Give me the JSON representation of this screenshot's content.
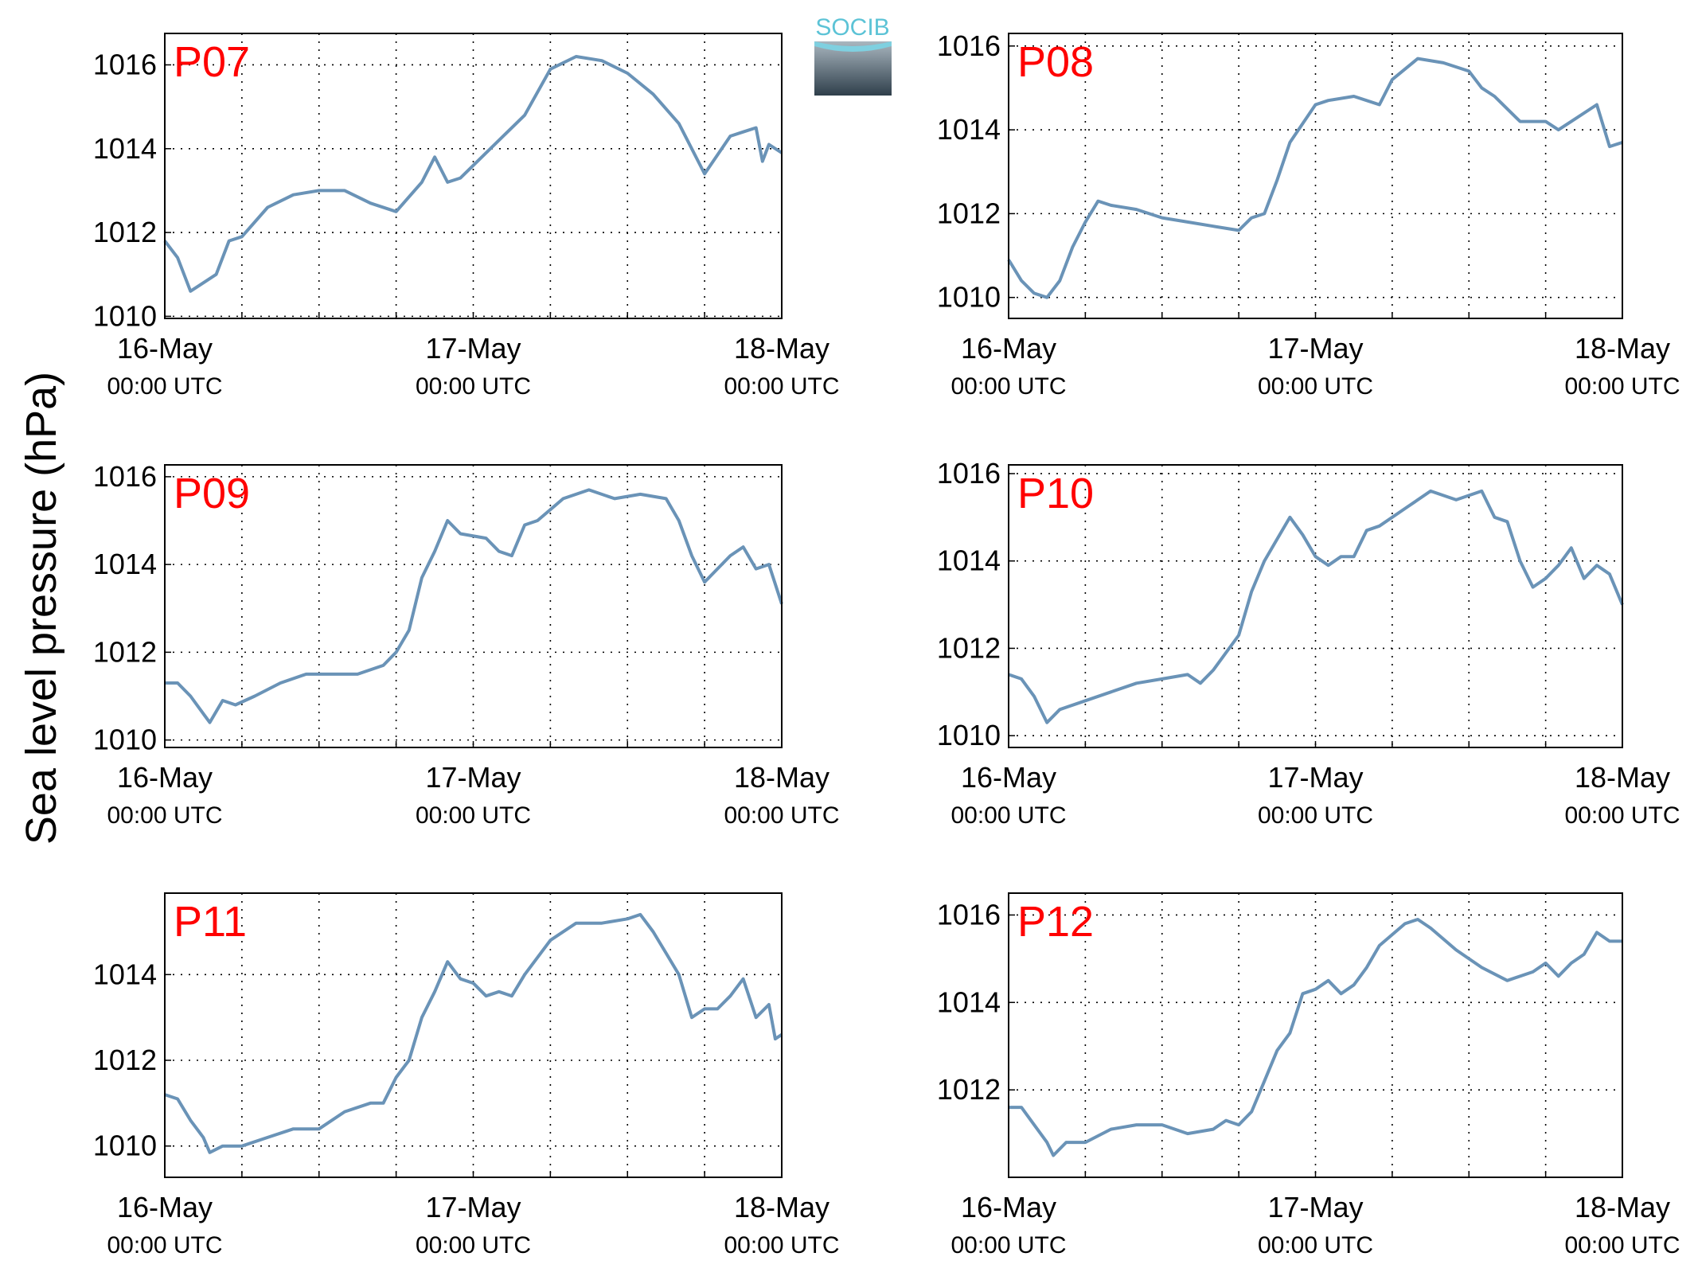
{
  "ylabel": "Sea level pressure (hPa)",
  "logo": "SOCIB",
  "chart_data": [
    {
      "type": "line",
      "title": "P07",
      "color": "#6a93b7",
      "grid": true,
      "xlim": [
        0,
        48
      ],
      "ylim": [
        1009.95,
        1016.75
      ],
      "yticks": [
        1010,
        1012,
        1014,
        1016
      ],
      "xticks": [
        {
          "value": 0,
          "label": "16-May\n00:00 UTC"
        },
        {
          "value": 6,
          "label": null
        },
        {
          "value": 12,
          "label": null
        },
        {
          "value": 18,
          "label": null
        },
        {
          "value": 24,
          "label": "17-May\n00:00 UTC"
        },
        {
          "value": 30,
          "label": null
        },
        {
          "value": 36,
          "label": null
        },
        {
          "value": 42,
          "label": null
        },
        {
          "value": 48,
          "label": "18-May\n00:00 UTC"
        }
      ],
      "x": [
        0,
        1,
        2,
        3,
        4,
        5,
        6,
        8,
        10,
        12,
        14,
        16,
        18,
        20,
        21,
        22,
        23,
        24,
        26,
        28,
        30,
        32,
        34,
        36,
        38,
        40,
        42,
        44,
        45,
        46,
        46.5,
        47,
        48
      ],
      "values": [
        1011.8,
        1011.4,
        1010.6,
        1010.8,
        1011.0,
        1011.8,
        1011.9,
        1012.6,
        1012.9,
        1013.0,
        1013.0,
        1012.7,
        1012.5,
        1013.2,
        1013.8,
        1013.2,
        1013.3,
        1013.6,
        1014.2,
        1014.8,
        1015.9,
        1016.2,
        1016.1,
        1015.8,
        1015.3,
        1014.6,
        1013.4,
        1014.3,
        1014.4,
        1014.5,
        1013.7,
        1014.1,
        1013.9
      ]
    },
    {
      "type": "line",
      "title": "P08",
      "color": "#6a93b7",
      "grid": true,
      "xlim": [
        0,
        48
      ],
      "ylim": [
        1009.5,
        1016.3
      ],
      "yticks": [
        1010,
        1012,
        1014,
        1016
      ],
      "xticks": [
        {
          "value": 0,
          "label": "16-May\n00:00 UTC"
        },
        {
          "value": 6,
          "label": null
        },
        {
          "value": 12,
          "label": null
        },
        {
          "value": 18,
          "label": null
        },
        {
          "value": 24,
          "label": "17-May\n00:00 UTC"
        },
        {
          "value": 30,
          "label": null
        },
        {
          "value": 36,
          "label": null
        },
        {
          "value": 42,
          "label": null
        },
        {
          "value": 48,
          "label": "18-May\n00:00 UTC"
        }
      ],
      "x": [
        0,
        1,
        2,
        3,
        4,
        5,
        6,
        7,
        8,
        10,
        12,
        14,
        16,
        18,
        19,
        20,
        21,
        22,
        24,
        25,
        27,
        29,
        30,
        32,
        34,
        36,
        37,
        38,
        40,
        42,
        43,
        44,
        46,
        47,
        48
      ],
      "values": [
        1010.9,
        1010.4,
        1010.1,
        1010.0,
        1010.4,
        1011.2,
        1011.8,
        1012.3,
        1012.2,
        1012.1,
        1011.9,
        1011.8,
        1011.7,
        1011.6,
        1011.9,
        1012.0,
        1012.8,
        1013.7,
        1014.6,
        1014.7,
        1014.8,
        1014.6,
        1015.2,
        1015.7,
        1015.6,
        1015.4,
        1015.0,
        1014.8,
        1014.2,
        1014.2,
        1014.0,
        1014.2,
        1014.6,
        1013.6,
        1013.7
      ]
    },
    {
      "type": "line",
      "title": "P09",
      "color": "#6a93b7",
      "grid": true,
      "xlim": [
        0,
        48
      ],
      "ylim": [
        1009.83,
        1016.27
      ],
      "yticks": [
        1010,
        1012,
        1014,
        1016
      ],
      "xticks": [
        {
          "value": 0,
          "label": "16-May\n00:00 UTC"
        },
        {
          "value": 6,
          "label": null
        },
        {
          "value": 12,
          "label": null
        },
        {
          "value": 18,
          "label": null
        },
        {
          "value": 24,
          "label": "17-May\n00:00 UTC"
        },
        {
          "value": 30,
          "label": null
        },
        {
          "value": 36,
          "label": null
        },
        {
          "value": 42,
          "label": null
        },
        {
          "value": 48,
          "label": "18-May\n00:00 UTC"
        }
      ],
      "x": [
        0,
        1,
        2,
        3,
        3.5,
        4.5,
        5.5,
        7,
        9,
        11,
        13,
        15,
        17,
        18,
        19,
        20,
        21,
        22,
        23,
        25,
        26,
        27,
        28,
        29,
        31,
        33,
        35,
        37,
        39,
        40,
        41,
        42,
        43,
        44,
        45,
        46,
        47,
        48
      ],
      "values": [
        1011.3,
        1011.3,
        1011.0,
        1010.6,
        1010.4,
        1010.9,
        1010.8,
        1011.0,
        1011.3,
        1011.5,
        1011.5,
        1011.5,
        1011.7,
        1012.0,
        1012.5,
        1013.7,
        1014.3,
        1015.0,
        1014.7,
        1014.6,
        1014.3,
        1014.2,
        1014.9,
        1015.0,
        1015.5,
        1015.7,
        1015.5,
        1015.6,
        1015.5,
        1015.0,
        1014.2,
        1013.6,
        1013.9,
        1014.2,
        1014.4,
        1013.9,
        1014.0,
        1013.1
      ]
    },
    {
      "type": "line",
      "title": "P10",
      "color": "#6a93b7",
      "grid": true,
      "xlim": [
        0,
        48
      ],
      "ylim": [
        1009.73,
        1016.2
      ],
      "yticks": [
        1010,
        1012,
        1014,
        1016
      ],
      "xticks": [
        {
          "value": 0,
          "label": "16-May\n00:00 UTC"
        },
        {
          "value": 6,
          "label": null
        },
        {
          "value": 12,
          "label": null
        },
        {
          "value": 18,
          "label": null
        },
        {
          "value": 24,
          "label": "17-May\n00:00 UTC"
        },
        {
          "value": 30,
          "label": null
        },
        {
          "value": 36,
          "label": null
        },
        {
          "value": 42,
          "label": null
        },
        {
          "value": 48,
          "label": "18-May\n00:00 UTC"
        }
      ],
      "x": [
        0,
        1,
        2,
        3,
        4,
        6,
        8,
        10,
        12,
        14,
        15,
        16,
        18,
        19,
        20,
        21,
        22,
        23,
        24,
        25,
        26,
        27,
        28,
        29,
        31,
        33,
        35,
        37,
        38,
        39,
        40,
        41,
        42,
        43,
        44,
        45,
        46,
        47,
        48
      ],
      "values": [
        1011.4,
        1011.3,
        1010.9,
        1010.3,
        1010.6,
        1010.8,
        1011.0,
        1011.2,
        1011.3,
        1011.4,
        1011.2,
        1011.5,
        1012.3,
        1013.3,
        1014.0,
        1014.5,
        1015.0,
        1014.6,
        1014.1,
        1013.9,
        1014.1,
        1014.1,
        1014.7,
        1014.8,
        1015.2,
        1015.6,
        1015.4,
        1015.6,
        1015.0,
        1014.9,
        1014.0,
        1013.4,
        1013.6,
        1013.9,
        1014.3,
        1013.6,
        1013.9,
        1013.7,
        1013.0
      ]
    },
    {
      "type": "line",
      "title": "P11",
      "color": "#6a93b7",
      "grid": true,
      "xlim": [
        0,
        48
      ],
      "ylim": [
        1009.27,
        1015.9
      ],
      "yticks": [
        1010,
        1012,
        1014
      ],
      "xticks": [
        {
          "value": 0,
          "label": "16-May\n00:00 UTC"
        },
        {
          "value": 6,
          "label": null
        },
        {
          "value": 12,
          "label": null
        },
        {
          "value": 18,
          "label": null
        },
        {
          "value": 24,
          "label": "17-May\n00:00 UTC"
        },
        {
          "value": 30,
          "label": null
        },
        {
          "value": 36,
          "label": null
        },
        {
          "value": 42,
          "label": null
        },
        {
          "value": 48,
          "label": "18-May\n00:00 UTC"
        }
      ],
      "x": [
        0,
        1,
        2,
        3,
        3.5,
        4.5,
        6,
        8,
        10,
        12,
        14,
        16,
        17,
        18,
        19,
        20,
        21,
        22,
        23,
        24,
        25,
        26,
        27,
        28,
        30,
        32,
        34,
        36,
        37,
        38,
        39,
        40,
        41,
        42,
        43,
        44,
        45,
        46,
        47,
        47.5,
        48
      ],
      "values": [
        1011.2,
        1011.1,
        1010.6,
        1010.2,
        1009.85,
        1010.0,
        1010.0,
        1010.2,
        1010.4,
        1010.4,
        1010.8,
        1011.0,
        1011.0,
        1011.6,
        1012.0,
        1013.0,
        1013.6,
        1014.3,
        1013.9,
        1013.8,
        1013.5,
        1013.6,
        1013.5,
        1014.0,
        1014.8,
        1015.2,
        1015.2,
        1015.3,
        1015.4,
        1015.0,
        1014.5,
        1014.0,
        1013.0,
        1013.2,
        1013.2,
        1013.5,
        1013.9,
        1013.0,
        1013.3,
        1012.5,
        1012.6
      ]
    },
    {
      "type": "line",
      "title": "P12",
      "color": "#6a93b7",
      "grid": true,
      "xlim": [
        0,
        48
      ],
      "ylim": [
        1010,
        1016.5
      ],
      "yticks": [
        1012,
        1014,
        1016
      ],
      "xticks": [
        {
          "value": 0,
          "label": "16-May\n00:00 UTC"
        },
        {
          "value": 6,
          "label": null
        },
        {
          "value": 12,
          "label": null
        },
        {
          "value": 18,
          "label": null
        },
        {
          "value": 24,
          "label": "17-May\n00:00 UTC"
        },
        {
          "value": 30,
          "label": null
        },
        {
          "value": 36,
          "label": null
        },
        {
          "value": 42,
          "label": null
        },
        {
          "value": 48,
          "label": "18-May\n00:00 UTC"
        }
      ],
      "x": [
        0,
        1,
        2,
        3,
        3.5,
        4.5,
        6,
        8,
        10,
        12,
        14,
        16,
        17,
        18,
        19,
        20,
        21,
        22,
        23,
        24,
        25,
        26,
        27,
        28,
        29,
        31,
        32,
        33,
        35,
        37,
        39,
        41,
        42,
        43,
        44,
        45,
        46,
        47,
        48
      ],
      "values": [
        1011.6,
        1011.6,
        1011.2,
        1010.8,
        1010.5,
        1010.8,
        1010.8,
        1011.1,
        1011.2,
        1011.2,
        1011.0,
        1011.1,
        1011.3,
        1011.2,
        1011.5,
        1012.2,
        1012.9,
        1013.3,
        1014.2,
        1014.3,
        1014.5,
        1014.2,
        1014.4,
        1014.8,
        1015.3,
        1015.8,
        1015.9,
        1015.7,
        1015.2,
        1014.8,
        1014.5,
        1014.7,
        1014.9,
        1014.6,
        1014.9,
        1015.1,
        1015.6,
        1015.4,
        1015.4
      ]
    }
  ]
}
